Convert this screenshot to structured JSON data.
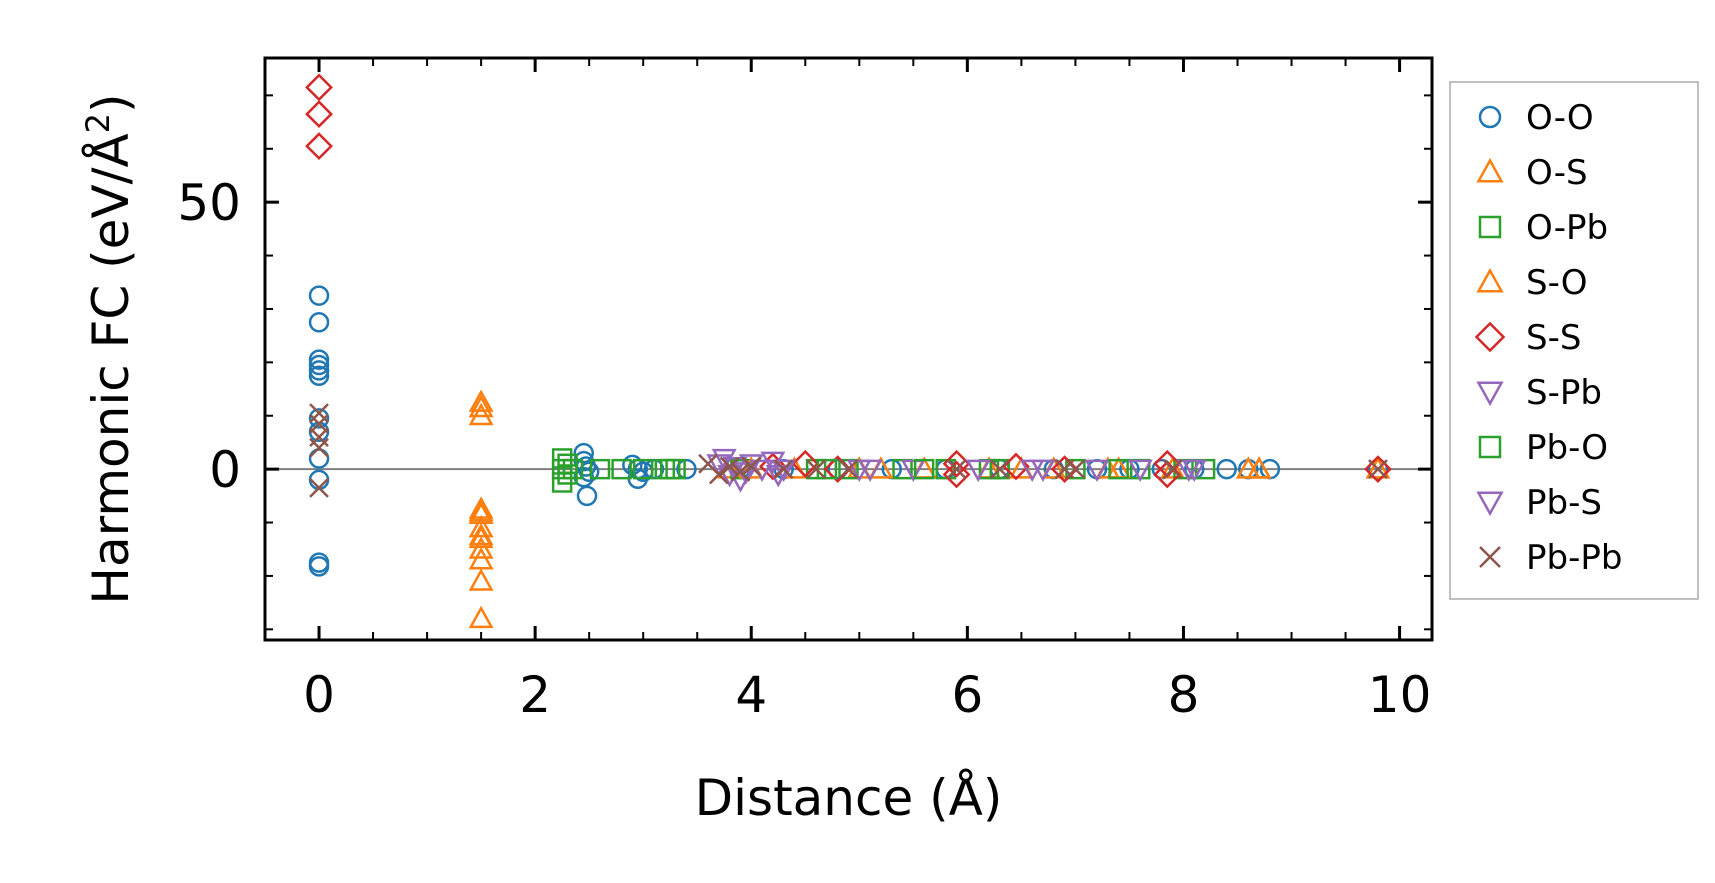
{
  "chart_data": {
    "type": "scatter",
    "xlabel": "Distance (Å)",
    "ylabel_main": "Harmonic FC (eV/Å",
    "ylabel_sup": "2",
    "ylabel_close": ")",
    "xlim": [
      -0.5,
      10.3
    ],
    "ylim": [
      -32,
      77
    ],
    "xticks": [
      0,
      2,
      4,
      6,
      8,
      10
    ],
    "xtick_labels": [
      "0",
      "2",
      "4",
      "6",
      "8",
      "10"
    ],
    "yticks": [
      0,
      50
    ],
    "ytick_labels": [
      "0",
      "50"
    ],
    "zero_line": true,
    "grid": false,
    "legend_position": "outside-right",
    "series": [
      {
        "name": "O-O",
        "marker": "circle",
        "color": "#1f77b4",
        "points": [
          [
            0,
            32.5
          ],
          [
            0,
            27.5
          ],
          [
            0,
            20.5
          ],
          [
            0,
            19.5
          ],
          [
            0,
            18.5
          ],
          [
            0,
            17.5
          ],
          [
            0,
            9.5
          ],
          [
            0,
            7
          ],
          [
            0,
            2
          ],
          [
            0,
            -2
          ],
          [
            0,
            -17.5
          ],
          [
            0,
            -18.2
          ],
          [
            2.45,
            3
          ],
          [
            2.45,
            1.5
          ],
          [
            2.47,
            0.5
          ],
          [
            2.5,
            -0.5
          ],
          [
            2.45,
            -1.5
          ],
          [
            2.48,
            -5
          ],
          [
            2.9,
            0.8
          ],
          [
            2.95,
            0
          ],
          [
            3.0,
            -0.5
          ],
          [
            2.95,
            -1.8
          ],
          [
            3.1,
            0
          ],
          [
            3.4,
            0
          ],
          [
            3.9,
            0
          ],
          [
            4.3,
            0
          ],
          [
            4.8,
            0
          ],
          [
            5.3,
            0
          ],
          [
            5.8,
            0
          ],
          [
            6.3,
            0
          ],
          [
            6.8,
            0
          ],
          [
            7.2,
            0
          ],
          [
            7.5,
            0
          ],
          [
            7.8,
            0
          ],
          [
            8.1,
            0
          ],
          [
            8.4,
            0
          ],
          [
            8.6,
            0
          ],
          [
            8.8,
            0
          ],
          [
            9.8,
            0
          ]
        ]
      },
      {
        "name": "O-S",
        "marker": "triangle-up",
        "color": "#ff7f0e",
        "points": [
          [
            1.5,
            12.5
          ],
          [
            1.5,
            10
          ],
          [
            1.5,
            -7.5
          ],
          [
            1.5,
            -8.5
          ],
          [
            1.5,
            -11
          ],
          [
            1.5,
            -12.5
          ],
          [
            1.5,
            -15
          ],
          [
            1.5,
            -17
          ],
          [
            1.5,
            -21
          ],
          [
            1.5,
            -28
          ],
          [
            3.8,
            0
          ],
          [
            4.4,
            0
          ],
          [
            5.0,
            0
          ],
          [
            5.6,
            0
          ],
          [
            6.2,
            0
          ],
          [
            6.8,
            0
          ],
          [
            7.4,
            0
          ],
          [
            7.9,
            0
          ],
          [
            8.6,
            0
          ],
          [
            8.7,
            0
          ],
          [
            9.8,
            0
          ]
        ]
      },
      {
        "name": "O-Pb",
        "marker": "square",
        "color": "#2ca02c",
        "points": [
          [
            2.25,
            2
          ],
          [
            2.25,
            0
          ],
          [
            2.25,
            -2.5
          ],
          [
            2.35,
            0
          ],
          [
            2.6,
            0
          ],
          [
            2.8,
            0
          ],
          [
            3.0,
            0
          ],
          [
            3.2,
            0
          ],
          [
            3.25,
            0
          ],
          [
            3.9,
            0
          ],
          [
            4.6,
            0
          ],
          [
            4.9,
            0
          ],
          [
            5.4,
            0
          ],
          [
            5.8,
            0
          ],
          [
            6.3,
            0
          ],
          [
            7.0,
            0
          ],
          [
            7.6,
            0
          ],
          [
            8.0,
            0
          ],
          [
            8.2,
            0
          ]
        ]
      },
      {
        "name": "S-O",
        "marker": "triangle-up",
        "color": "#ff7f0e",
        "points": [
          [
            1.5,
            11.5
          ],
          [
            1.5,
            -8
          ],
          [
            1.5,
            -13
          ],
          [
            4.0,
            0
          ],
          [
            5.2,
            0
          ],
          [
            6.5,
            0
          ],
          [
            7.3,
            0
          ],
          [
            8.7,
            0
          ]
        ]
      },
      {
        "name": "S-S",
        "marker": "diamond",
        "color": "#d62728",
        "points": [
          [
            0,
            71.5
          ],
          [
            0,
            66.5
          ],
          [
            0,
            60.5
          ],
          [
            4.2,
            0.5
          ],
          [
            4.5,
            1
          ],
          [
            4.8,
            0
          ],
          [
            5.9,
            1
          ],
          [
            5.9,
            -1
          ],
          [
            6.45,
            0.5
          ],
          [
            6.9,
            0
          ],
          [
            7.85,
            1
          ],
          [
            7.85,
            -1
          ],
          [
            9.8,
            0
          ]
        ]
      },
      {
        "name": "S-Pb",
        "marker": "triangle-down",
        "color": "#9467bd",
        "points": [
          [
            3.75,
            2
          ],
          [
            3.8,
            -1
          ],
          [
            3.85,
            0.5
          ],
          [
            3.9,
            -2
          ],
          [
            4.0,
            1
          ],
          [
            4.1,
            0
          ],
          [
            4.2,
            1.5
          ],
          [
            4.25,
            -1
          ],
          [
            5.1,
            0
          ],
          [
            5.5,
            0
          ],
          [
            6.6,
            0
          ],
          [
            7.2,
            0
          ],
          [
            8.05,
            0
          ]
        ]
      },
      {
        "name": "Pb-O",
        "marker": "square",
        "color": "#2ca02c",
        "points": [
          [
            2.3,
            1
          ],
          [
            2.3,
            -1
          ],
          [
            3.3,
            0
          ],
          [
            4.7,
            0
          ],
          [
            5.6,
            0
          ],
          [
            6.2,
            0
          ],
          [
            7.4,
            0
          ]
        ]
      },
      {
        "name": "Pb-S",
        "marker": "triangle-down",
        "color": "#9467bd",
        "points": [
          [
            3.7,
            1
          ],
          [
            3.95,
            -0.5
          ],
          [
            4.3,
            0
          ],
          [
            5.0,
            0
          ],
          [
            6.1,
            0
          ],
          [
            6.7,
            0
          ],
          [
            7.6,
            0
          ],
          [
            8.1,
            0
          ]
        ]
      },
      {
        "name": "Pb-Pb",
        "marker": "x",
        "color": "#8c564b",
        "points": [
          [
            0,
            10.5
          ],
          [
            0,
            8.5
          ],
          [
            0,
            6
          ],
          [
            0,
            4
          ],
          [
            0,
            -3.5
          ],
          [
            3.6,
            1
          ],
          [
            3.7,
            -1
          ],
          [
            3.8,
            0.5
          ],
          [
            3.9,
            -0.5
          ],
          [
            4.0,
            0.5
          ],
          [
            4.3,
            0
          ],
          [
            4.6,
            0
          ],
          [
            4.9,
            0
          ],
          [
            5.9,
            0
          ],
          [
            6.3,
            0
          ],
          [
            6.9,
            0
          ],
          [
            7.0,
            0
          ],
          [
            7.9,
            0
          ],
          [
            9.8,
            0
          ]
        ]
      }
    ]
  }
}
